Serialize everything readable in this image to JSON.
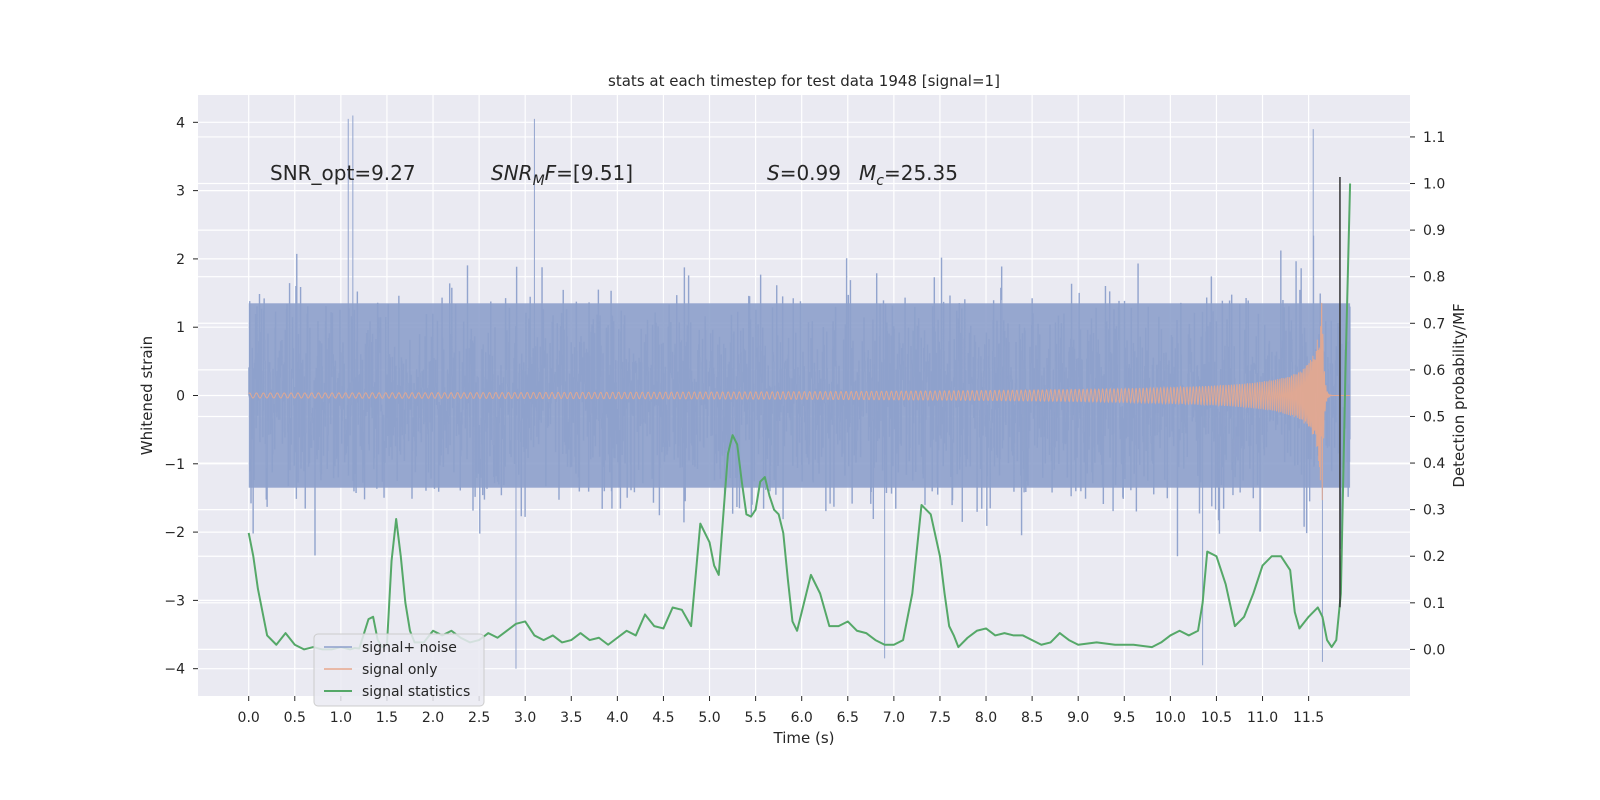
{
  "chart_data": {
    "type": "line",
    "title": "stats at each timestep for test data 1948 [signal=1]",
    "xlabel": "Time (s)",
    "ylabel": "Whitened strain",
    "y2label": "Detection probability/MF",
    "xlim": [
      -0.55,
      12.6
    ],
    "ylim": [
      -4.4,
      4.4
    ],
    "y2lim": [
      -0.1,
      1.19
    ],
    "xticks": [
      0.0,
      0.5,
      1.0,
      1.5,
      2.0,
      2.5,
      3.0,
      3.5,
      4.0,
      4.5,
      5.0,
      5.5,
      6.0,
      6.5,
      7.0,
      7.5,
      8.0,
      8.5,
      9.0,
      9.5,
      10.0,
      10.5,
      11.0,
      11.5
    ],
    "xtick_labels": [
      "0.0",
      "0.5",
      "1.0",
      "1.5",
      "2.0",
      "2.5",
      "3.0",
      "3.5",
      "4.0",
      "4.5",
      "5.0",
      "5.5",
      "6.0",
      "6.5",
      "7.0",
      "7.5",
      "8.0",
      "8.5",
      "9.0",
      "9.5",
      "10.0",
      "10.5",
      "11.0",
      "11.5"
    ],
    "yticks": [
      -4,
      -3,
      -2,
      -1,
      0,
      1,
      2,
      3,
      4
    ],
    "ytick_labels": [
      "−4",
      "−3",
      "−2",
      "−1",
      "0",
      "1",
      "2",
      "3",
      "4"
    ],
    "y2ticks": [
      0.0,
      0.1,
      0.2,
      0.3,
      0.4,
      0.5,
      0.6,
      0.7,
      0.8,
      0.9,
      1.0,
      1.1
    ],
    "y2tick_labels": [
      "0.0",
      "0.1",
      "0.2",
      "0.3",
      "0.4",
      "0.5",
      "0.6",
      "0.7",
      "0.8",
      "0.9",
      "1.0",
      "1.1"
    ],
    "grid": true,
    "legend_position": "lower-left",
    "annotations": {
      "snr_opt": "SNR_opt=9.27",
      "snr_mf_italic": "SNR",
      "snr_mf_sub": "M",
      "snr_mf_italic2": "F",
      "snr_mf_value": "=[9.51]",
      "s_italic": "S",
      "s_value": "=0.99",
      "mc_italic": "M",
      "mc_sub": "c",
      "mc_value": "=25.35"
    },
    "series": [
      {
        "name": "signal+ noise",
        "color": "#8da0cb",
        "axis": "left",
        "t_range": [
          0.0,
          11.95
        ],
        "envelope_typical": 2.3,
        "peaks": [
          [
            1.08,
            4.05
          ],
          [
            1.13,
            4.1
          ],
          [
            3.1,
            4.05
          ],
          [
            11.55,
            3.9
          ],
          [
            2.9,
            -4.0
          ],
          [
            6.9,
            -3.85
          ],
          [
            11.65,
            -3.9
          ],
          [
            10.35,
            -3.95
          ]
        ]
      },
      {
        "name": "signal only",
        "color": "#e8a88d",
        "axis": "left",
        "t_range": [
          0.0,
          11.95
        ],
        "max_amplitude": 2.55,
        "merger_time": 11.64
      },
      {
        "name": "signal statistics",
        "color": "#55a868",
        "axis": "right",
        "x": [
          0.0,
          0.05,
          0.1,
          0.2,
          0.3,
          0.4,
          0.5,
          0.6,
          0.7,
          0.8,
          0.9,
          1.0,
          1.1,
          1.15,
          1.2,
          1.3,
          1.35,
          1.4,
          1.45,
          1.5,
          1.55,
          1.6,
          1.65,
          1.7,
          1.75,
          1.8,
          1.9,
          2.0,
          2.1,
          2.2,
          2.3,
          2.4,
          2.5,
          2.6,
          2.7,
          2.8,
          2.9,
          3.0,
          3.1,
          3.2,
          3.3,
          3.4,
          3.5,
          3.6,
          3.7,
          3.8,
          3.9,
          4.0,
          4.1,
          4.2,
          4.3,
          4.4,
          4.5,
          4.6,
          4.7,
          4.8,
          4.9,
          5.0,
          5.05,
          5.1,
          5.2,
          5.25,
          5.3,
          5.35,
          5.4,
          5.45,
          5.5,
          5.55,
          5.6,
          5.65,
          5.7,
          5.75,
          5.8,
          5.85,
          5.9,
          5.95,
          6.0,
          6.1,
          6.2,
          6.3,
          6.4,
          6.5,
          6.6,
          6.7,
          6.8,
          6.9,
          7.0,
          7.1,
          7.2,
          7.3,
          7.4,
          7.5,
          7.55,
          7.6,
          7.65,
          7.7,
          7.8,
          7.9,
          8.0,
          8.1,
          8.2,
          8.3,
          8.4,
          8.5,
          8.6,
          8.7,
          8.8,
          8.9,
          9.0,
          9.2,
          9.4,
          9.6,
          9.8,
          9.9,
          10.0,
          10.1,
          10.2,
          10.3,
          10.35,
          10.4,
          10.5,
          10.6,
          10.7,
          10.8,
          10.9,
          11.0,
          11.1,
          11.2,
          11.3,
          11.35,
          11.4,
          11.5,
          11.6,
          11.65,
          11.7,
          11.75,
          11.8,
          11.85,
          11.9,
          11.95
        ],
        "values": [
          0.25,
          0.2,
          0.13,
          0.03,
          0.01,
          0.035,
          0.01,
          0.0,
          0.005,
          0.0,
          0.0,
          0.005,
          0.0,
          0.003,
          0.002,
          0.065,
          0.07,
          0.02,
          0.005,
          0.01,
          0.19,
          0.28,
          0.2,
          0.1,
          0.04,
          0.015,
          0.015,
          0.04,
          0.03,
          0.04,
          0.025,
          0.015,
          0.02,
          0.035,
          0.025,
          0.04,
          0.055,
          0.06,
          0.03,
          0.02,
          0.03,
          0.015,
          0.02,
          0.035,
          0.02,
          0.025,
          0.01,
          0.025,
          0.04,
          0.03,
          0.075,
          0.05,
          0.045,
          0.09,
          0.085,
          0.05,
          0.27,
          0.23,
          0.18,
          0.16,
          0.42,
          0.46,
          0.44,
          0.36,
          0.29,
          0.285,
          0.3,
          0.36,
          0.37,
          0.33,
          0.3,
          0.29,
          0.25,
          0.15,
          0.06,
          0.04,
          0.08,
          0.16,
          0.12,
          0.05,
          0.05,
          0.06,
          0.04,
          0.035,
          0.02,
          0.01,
          0.01,
          0.02,
          0.12,
          0.31,
          0.29,
          0.2,
          0.12,
          0.05,
          0.03,
          0.005,
          0.025,
          0.04,
          0.045,
          0.03,
          0.035,
          0.03,
          0.03,
          0.02,
          0.01,
          0.015,
          0.035,
          0.02,
          0.01,
          0.015,
          0.01,
          0.01,
          0.005,
          0.015,
          0.03,
          0.04,
          0.03,
          0.04,
          0.1,
          0.21,
          0.2,
          0.14,
          0.05,
          0.07,
          0.12,
          0.18,
          0.2,
          0.2,
          0.17,
          0.08,
          0.045,
          0.07,
          0.09,
          0.07,
          0.02,
          0.005,
          0.02,
          0.12,
          0.6,
          1.0
        ]
      }
    ],
    "vertical_marker": {
      "x": 11.84,
      "y_from": -3.1,
      "y_to": 3.2,
      "color": "#333333"
    }
  }
}
